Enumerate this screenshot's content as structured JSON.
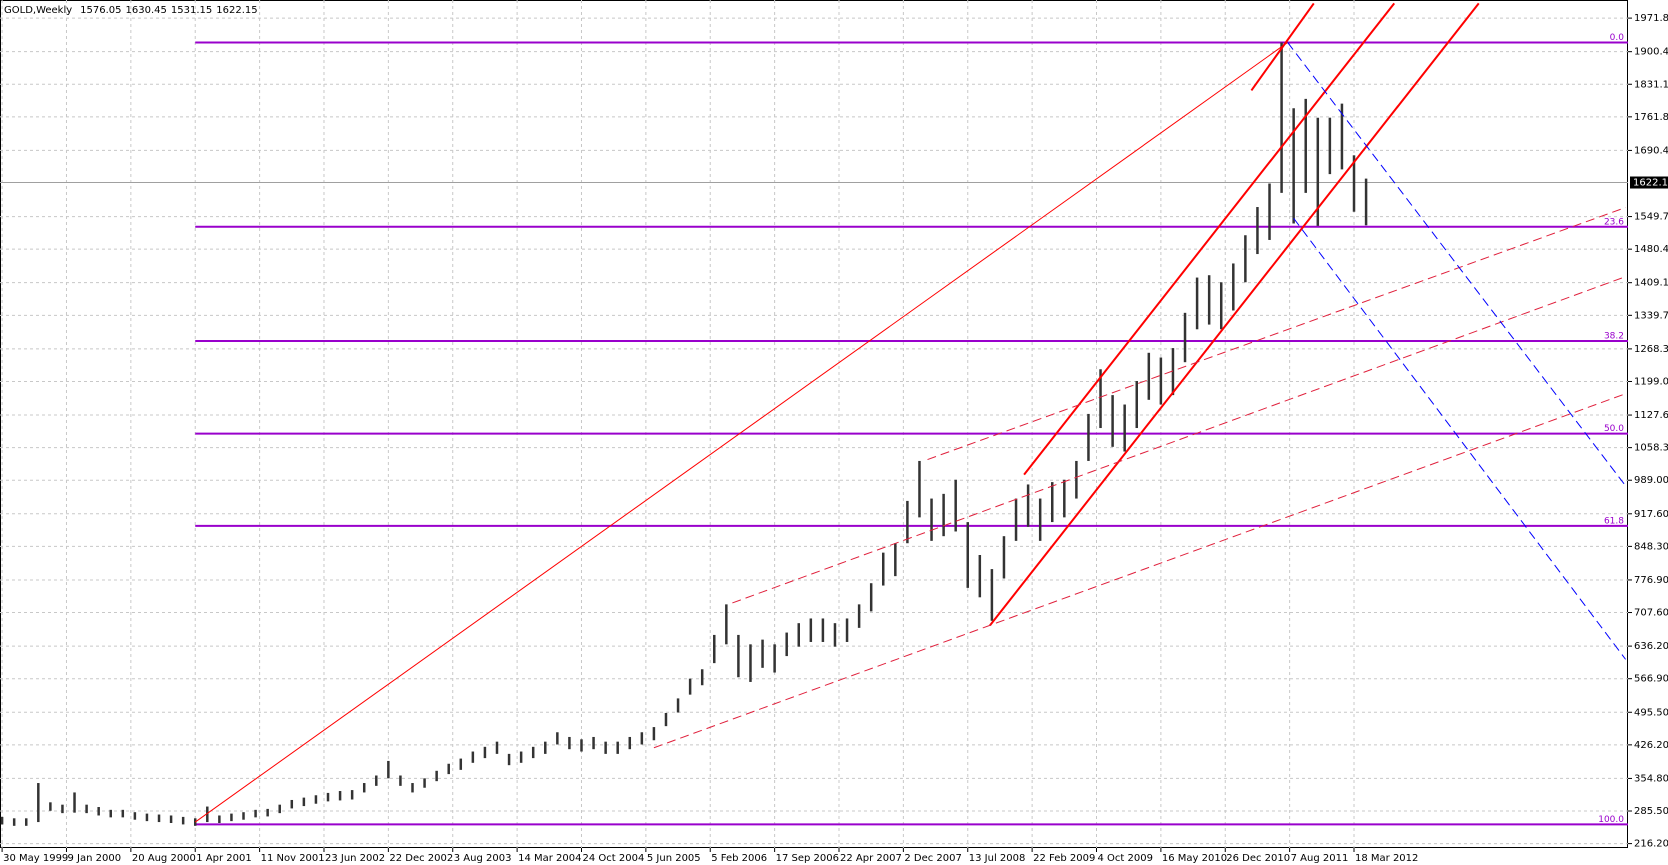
{
  "chart_data": {
    "type": "ohlc_bars",
    "title": "GOLD,Weekly",
    "quote": {
      "open": 1576.05,
      "high": 1630.45,
      "low": 1531.15,
      "close": 1622.15
    },
    "color": "#333333",
    "grid": true,
    "x": [
      0,
      6,
      12,
      18,
      24,
      30,
      36,
      42,
      48,
      54,
      60,
      66,
      72,
      78,
      84,
      90,
      96,
      102,
      108,
      114,
      120,
      126,
      132,
      138,
      144,
      150,
      156,
      162,
      168,
      174,
      180,
      186,
      192,
      198,
      204,
      210,
      216,
      222,
      228,
      234,
      240,
      246,
      252,
      258,
      264,
      270,
      276,
      282,
      288,
      294,
      300,
      306,
      312,
      318,
      324,
      330,
      336,
      342,
      348,
      354,
      360,
      366,
      372,
      378,
      384,
      390,
      396,
      402,
      408,
      414,
      420,
      426,
      432,
      438,
      444,
      450,
      456,
      462,
      468,
      474,
      480,
      486,
      492,
      498,
      504,
      510,
      516,
      522,
      528,
      534,
      540,
      546,
      552,
      558,
      564,
      570,
      576,
      582,
      588,
      594,
      600,
      606,
      612,
      618,
      624,
      630,
      636,
      642,
      648,
      654,
      660,
      666,
      672,
      678
    ],
    "high": [
      273,
      270,
      270,
      345,
      304,
      299,
      325,
      299,
      294,
      288,
      288,
      283,
      280,
      278,
      276,
      273,
      270,
      295,
      276,
      280,
      283,
      288,
      290,
      299,
      309,
      314,
      319,
      324,
      328,
      330,
      345,
      361,
      392,
      361,
      345,
      355,
      371,
      386,
      397,
      412,
      422,
      433,
      407,
      412,
      422,
      433,
      453,
      443,
      438,
      443,
      433,
      433,
      443,
      453,
      464,
      494,
      525,
      567,
      587,
      660,
      725,
      660,
      640,
      650,
      640,
      665,
      685,
      695,
      695,
      685,
      695,
      725,
      770,
      835,
      855,
      945,
      1030,
      950,
      960,
      990,
      900,
      830,
      800,
      870,
      950,
      980,
      950,
      985,
      990,
      1030,
      1130,
      1225,
      1170,
      1150,
      1200,
      1260,
      1250,
      1270,
      1345,
      1420,
      1425,
      1410,
      1450,
      1510,
      1570,
      1620,
      1920,
      1780,
      1800,
      1760,
      1760,
      1790,
      1680,
      1630.45
    ],
    "low": [
      257,
      254,
      254,
      262,
      286,
      281,
      282,
      281,
      276,
      272,
      272,
      267,
      264,
      262,
      260,
      257,
      254,
      262,
      260,
      264,
      267,
      272,
      274,
      281,
      291,
      296,
      301,
      306,
      308,
      310,
      325,
      339,
      355,
      339,
      325,
      335,
      349,
      364,
      373,
      388,
      398,
      407,
      383,
      388,
      398,
      407,
      427,
      417,
      412,
      417,
      407,
      407,
      417,
      427,
      436,
      466,
      495,
      533,
      553,
      600,
      640,
      570,
      560,
      590,
      580,
      615,
      635,
      645,
      645,
      635,
      645,
      675,
      710,
      765,
      785,
      855,
      910,
      860,
      870,
      880,
      760,
      740,
      690,
      780,
      860,
      890,
      860,
      900,
      910,
      950,
      1030,
      1100,
      1060,
      1050,
      1100,
      1160,
      1150,
      1170,
      1240,
      1310,
      1320,
      1310,
      1350,
      1410,
      1470,
      1500,
      1600,
      1535,
      1600,
      1530,
      1640,
      1650,
      1560,
      1531.15
    ],
    "xlim": [
      0,
      807
    ],
    "ylim": [
      216.2,
      1971.8
    ],
    "xticks": [
      {
        "value": 0,
        "label": "30 May 1999"
      },
      {
        "value": 32,
        "label": "9 Jan 2000"
      },
      {
        "value": 64,
        "label": "20 Aug 2000"
      },
      {
        "value": 96,
        "label": "1 Apr 2001"
      },
      {
        "value": 128,
        "label": "11 Nov 2001"
      },
      {
        "value": 160,
        "label": "23 Jun 2002"
      },
      {
        "value": 192,
        "label": "22 Dec 2002"
      },
      {
        "value": 224,
        "label": "3 Aug 2003"
      },
      {
        "value": 256,
        "label": "14 Mar 2004"
      },
      {
        "value": 288,
        "label": "24 Oct 2004"
      },
      {
        "value": 320,
        "label": "5 Jun 2005"
      },
      {
        "value": 352,
        "label": "5 Feb 2006"
      },
      {
        "value": 384,
        "label": "17 Sep 2006"
      },
      {
        "value": 416,
        "label": "22 Apr 2007"
      },
      {
        "value": 448,
        "label": "2 Dec 2007"
      },
      {
        "value": 480,
        "label": "13 Jul 2008"
      },
      {
        "value": 512,
        "label": "22 Feb 2009"
      },
      {
        "value": 544,
        "label": "4 Oct 2009"
      },
      {
        "value": 576,
        "label": "16 May 2010"
      },
      {
        "value": 608,
        "label": "26 Dec 2010"
      },
      {
        "value": 640,
        "label": "7 Aug 2011"
      },
      {
        "value": 672,
        "label": "18 Mar 2012"
      }
    ],
    "yticks": [
      {
        "value": 1971.8,
        "label": "1971.80"
      },
      {
        "value": 1900.4,
        "label": "1900.40"
      },
      {
        "value": 1831.1,
        "label": "1831.10"
      },
      {
        "value": 1761.8,
        "label": "1761.80"
      },
      {
        "value": 1690.4,
        "label": "1690.40"
      },
      {
        "value": 1549.7,
        "label": "1549.70"
      },
      {
        "value": 1480.4,
        "label": "1480.40"
      },
      {
        "value": 1409.1,
        "label": "1409.10"
      },
      {
        "value": 1339.7,
        "label": "1339.70"
      },
      {
        "value": 1268.3,
        "label": "1268.30"
      },
      {
        "value": 1199,
        "label": "1199.00"
      },
      {
        "value": 1127.6,
        "label": "1127.60"
      },
      {
        "value": 1058.3,
        "label": "1058.30"
      },
      {
        "value": 989,
        "label": "989.00"
      },
      {
        "value": 917.6,
        "label": "917.60"
      },
      {
        "value": 848.3,
        "label": "848.30"
      },
      {
        "value": 776.9,
        "label": "776.90"
      },
      {
        "value": 707.6,
        "label": "707.60"
      },
      {
        "value": 636.2,
        "label": "636.20"
      },
      {
        "value": 566.9,
        "label": "566.90"
      },
      {
        "value": 495.5,
        "label": "495.50"
      },
      {
        "value": 426.2,
        "label": "426.20"
      },
      {
        "value": 354.8,
        "label": "354.80"
      },
      {
        "value": 285.5,
        "label": "285.50"
      },
      {
        "value": 216.2,
        "label": "216.20"
      }
    ],
    "fib_start": 96,
    "fib_color": "#9900cc",
    "fib_levels": [
      {
        "label": "0.0",
        "price": 1920
      },
      {
        "label": "23.6",
        "price": 1528
      },
      {
        "label": "38.2",
        "price": 1285
      },
      {
        "label": "50.0",
        "price": 1088
      },
      {
        "label": "61.8",
        "price": 892
      },
      {
        "label": "100.0",
        "price": 257
      }
    ],
    "trendlines": [
      {
        "x": [
          96,
          639
        ],
        "y": [
          262,
          1920
        ],
        "color": "#ff0000",
        "width": 1,
        "dashed": false
      },
      {
        "x": [
          621,
          652
        ],
        "y": [
          1818,
          2003
        ],
        "color": "#ff0000",
        "width": 2,
        "dashed": false
      },
      {
        "x": [
          491,
          734
        ],
        "y": [
          680,
          2003
        ],
        "color": "#ff0000",
        "width": 2,
        "dashed": false
      },
      {
        "x": [
          508,
          692
        ],
        "y": [
          1001,
          2003
        ],
        "color": "#ff0000",
        "width": 2,
        "dashed": false
      },
      {
        "x": [
          324,
          807
        ],
        "y": [
          420,
          1173
        ],
        "color": "#e0203c",
        "width": 1,
        "dashed": true
      },
      {
        "x": [
          363,
          807
        ],
        "y": [
          728,
          1422
        ],
        "color": "#e0203c",
        "width": 1,
        "dashed": true
      },
      {
        "x": [
          460,
          807
        ],
        "y": [
          1033,
          1569
        ],
        "color": "#e0203c",
        "width": 1,
        "dashed": true
      },
      {
        "x": [
          639,
          807
        ],
        "y": [
          1920,
          977
        ],
        "color": "#0000ff",
        "width": 1,
        "dashed": true
      },
      {
        "x": [
          642,
          807
        ],
        "y": [
          1546,
          608
        ],
        "color": "#0000ff",
        "width": 1,
        "dashed": true
      }
    ]
  }
}
